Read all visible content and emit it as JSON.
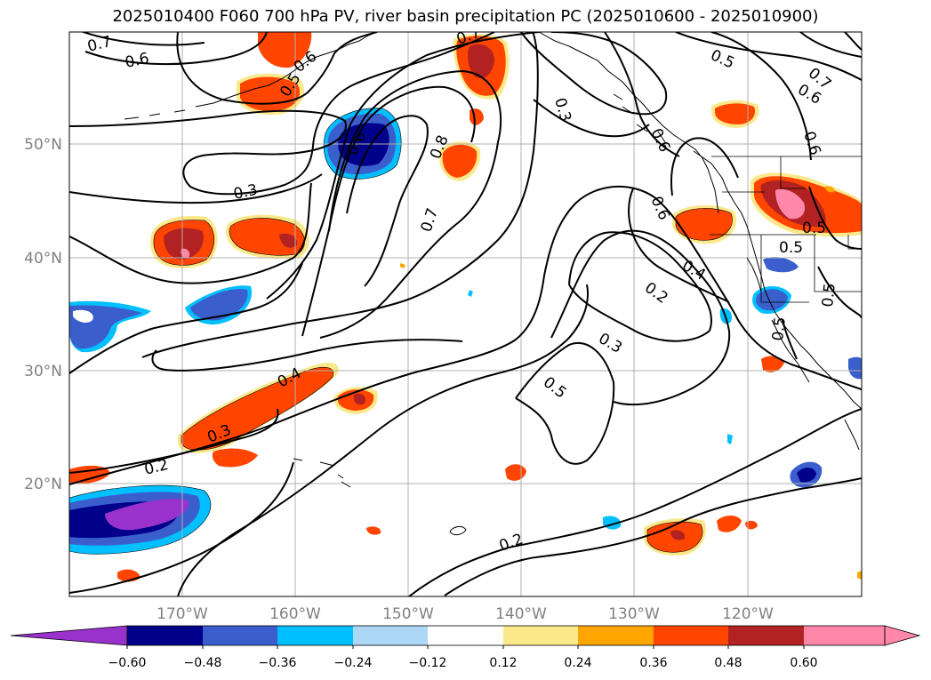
{
  "title": "2025010400 F060 700 hPa PV, river basin precipitation PC (2025010600 - 2025010900)",
  "lat_labels": [
    "50°N",
    "40°N",
    "30°N",
    "20°N"
  ],
  "lon_labels": [
    "170°W",
    "160°W",
    "150°W",
    "140°W",
    "130°W",
    "120°W"
  ],
  "contour_labels": [
    "0.7",
    "0.6",
    "0.6",
    "0.5",
    "0.3",
    "0.6",
    "0.8",
    "0.7",
    "0.7",
    "0.5",
    "0.7",
    "0.6",
    "0.3",
    "0.6",
    "0.6",
    "0.6",
    "0.5",
    "0.4",
    "0.2",
    "0.3",
    "0.5",
    "0.4",
    "0.3",
    "0.2",
    "0.2",
    "0.5",
    "0.5",
    "0.5"
  ],
  "colorbar": {
    "ticks": [
      "−0.60",
      "−0.48",
      "−0.36",
      "−0.24",
      "−0.12",
      "0.12",
      "0.24",
      "0.36",
      "0.48",
      "0.60"
    ],
    "colors": [
      "#9932cc",
      "#00008b",
      "#3a5fcd",
      "#00bfff",
      "#add8f5",
      "#ffffff",
      "#fbe88a",
      "#ffa500",
      "#ff4500",
      "#b22222",
      "#ff88aa",
      "#ff88aa"
    ]
  }
}
